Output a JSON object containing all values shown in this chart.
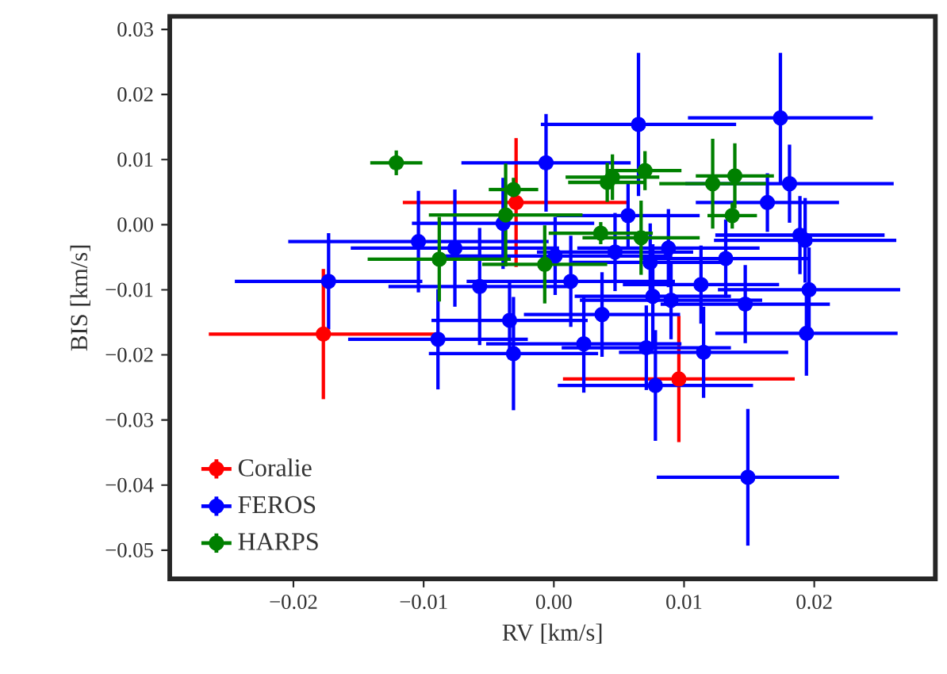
{
  "chart_data": {
    "type": "scatter",
    "xlabel": "RV [km/s]",
    "ylabel": "BIS [km/s]",
    "marker": "circle",
    "legend": "bottom left",
    "grid": false,
    "xlim": [
      -0.0295,
      0.0293
    ],
    "ylim": [
      -0.0544,
      0.032
    ],
    "xticks": [
      {
        "value": -0.02,
        "label": "−0.02"
      },
      {
        "value": -0.01,
        "label": "−0.01"
      },
      {
        "value": 0,
        "label": "0.00"
      },
      {
        "value": 0.01,
        "label": "0.01"
      },
      {
        "value": 0.02,
        "label": "0.02"
      }
    ],
    "yticks": [
      {
        "value": -0.05,
        "label": "−0.05"
      },
      {
        "value": -0.04,
        "label": "−0.04"
      },
      {
        "value": -0.03,
        "label": "−0.03"
      },
      {
        "value": -0.02,
        "label": "−0.02"
      },
      {
        "value": -0.01,
        "label": "−0.01"
      },
      {
        "value": 0,
        "label": "0.00"
      },
      {
        "value": 0.01,
        "label": "0.01"
      },
      {
        "value": 0.02,
        "label": "0.02"
      },
      {
        "value": 0.03,
        "label": "0.03"
      }
    ],
    "series": [
      {
        "name": "Coralie",
        "color": "#ff0000",
        "x": [
          -0.0177,
          0.0096,
          -0.0029
        ],
        "values": [
          -0.0168,
          -0.0237,
          0.0034
        ],
        "xerrors": [
          0.0088,
          0.0089,
          0.0087
        ],
        "errors": [
          0.01,
          0.0097,
          0.0099
        ]
      },
      {
        "name": "FEROS",
        "color": "#0000ff",
        "x": [
          -0.0006,
          -0.0104,
          -0.0076,
          -0.0173,
          -0.0057,
          -0.0039,
          0.0001,
          -0.0089,
          -0.0034,
          -0.0031,
          0.0065,
          0.0174,
          0.0181,
          0.0164,
          0.0057,
          0.0189,
          0.0193,
          0.0047,
          0.0074,
          0.0088,
          0.0132,
          0.0013,
          0.0113,
          0.0196,
          0.0147,
          0.0076,
          0.009,
          0.0037,
          0.0023,
          0.0071,
          0.0115,
          0.0194,
          0.0078,
          0.0149
        ],
        "values": [
          0.0095,
          -0.0026,
          -0.0036,
          -0.0087,
          -0.0095,
          0.0002,
          -0.0048,
          -0.0176,
          -0.0147,
          -0.0198,
          0.0154,
          0.0164,
          0.0063,
          0.0034,
          0.0014,
          -0.0016,
          -0.0024,
          -0.0042,
          -0.0058,
          -0.0036,
          -0.0052,
          -0.0087,
          -0.0092,
          -0.01,
          -0.0122,
          -0.011,
          -0.0116,
          -0.0138,
          -0.0183,
          -0.0189,
          -0.0196,
          -0.0167,
          -0.0247,
          -0.0388
        ],
        "xerrors": [
          0.0065,
          0.01,
          0.008,
          0.0072,
          0.007,
          0.007,
          0.009,
          0.0069,
          0.006,
          0.0065,
          0.0075,
          0.0071,
          0.008,
          0.0055,
          0.0055,
          0.0065,
          0.007,
          0.006,
          0.006,
          0.007,
          0.0065,
          0.008,
          0.006,
          0.007,
          0.0065,
          0.006,
          0.007,
          0.006,
          0.0075,
          0.0065,
          0.0065,
          0.007,
          0.0075,
          0.007
        ],
        "errors": [
          0.0075,
          0.0078,
          0.009,
          0.0074,
          0.009,
          0.007,
          0.006,
          0.0077,
          0.006,
          0.0087,
          0.011,
          0.01,
          0.006,
          0.0045,
          0.005,
          0.006,
          0.0065,
          0.006,
          0.006,
          0.006,
          0.006,
          0.007,
          0.006,
          0.0065,
          0.006,
          0.008,
          0.006,
          0.0065,
          0.0075,
          0.0065,
          0.007,
          0.0065,
          0.0085,
          0.0105
        ]
      },
      {
        "name": "HARPS",
        "color": "#008000",
        "x": [
          -0.0121,
          -0.0031,
          -0.0037,
          -0.0088,
          -0.0007,
          0.0045,
          0.0041,
          0.007,
          0.0036,
          0.0067,
          0.0122,
          0.0139,
          0.0137
        ],
        "values": [
          0.0095,
          0.0054,
          0.0015,
          -0.0053,
          -0.0061,
          0.0073,
          0.0065,
          0.0083,
          -0.0013,
          -0.002,
          0.0063,
          0.0075,
          0.0014
        ],
        "xerrors": [
          0.002,
          0.0019,
          0.0059,
          0.0055,
          0.0048,
          0.0036,
          0.003,
          0.0028,
          0.004,
          0.0045,
          0.0041,
          0.003,
          0.0019
        ],
        "errors": [
          0.0019,
          0.0018,
          0.0079,
          0.0065,
          0.006,
          0.0035,
          0.003,
          0.003,
          0.0017,
          0.0057,
          0.0069,
          0.005,
          0.002
        ]
      }
    ]
  }
}
